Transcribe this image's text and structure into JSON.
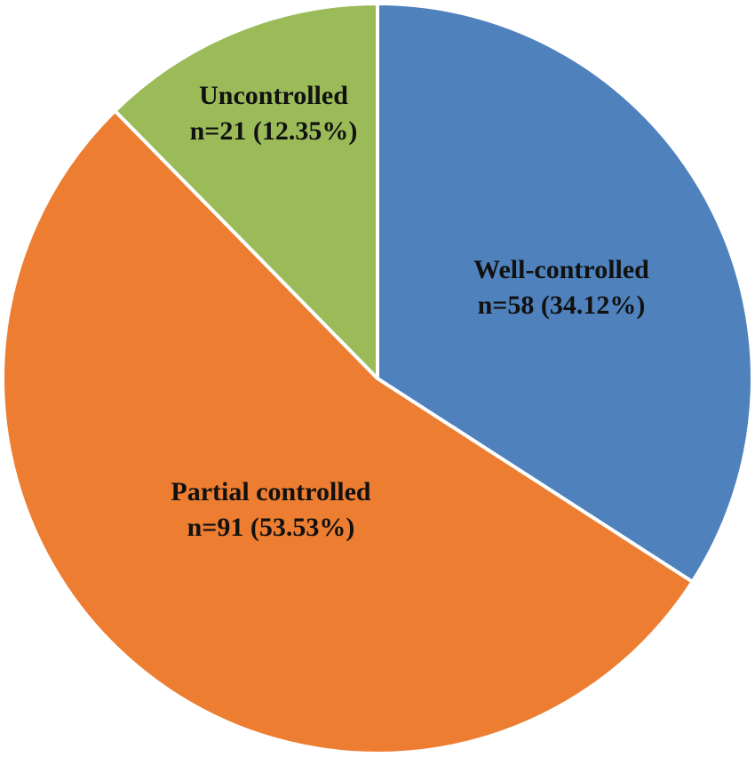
{
  "chart_data": {
    "type": "pie",
    "title": "",
    "slices": [
      {
        "label": "Well-controlled",
        "value_text": "n=58 (34.12%)",
        "n": 58,
        "percent": 34.12,
        "color": "#4f81bd"
      },
      {
        "label": "Partial controlled",
        "value_text": "n=91 (53.53%)",
        "n": 91,
        "percent": 53.53,
        "color": "#ed7d31"
      },
      {
        "label": "Uncontrolled",
        "value_text": "n=21 (12.35%)",
        "n": 21,
        "percent": 12.35,
        "color": "#9bbb59"
      }
    ],
    "start_angle_deg": 0,
    "direction": "clockwise",
    "legend": "none",
    "slice_border_color": "#ffffff"
  }
}
